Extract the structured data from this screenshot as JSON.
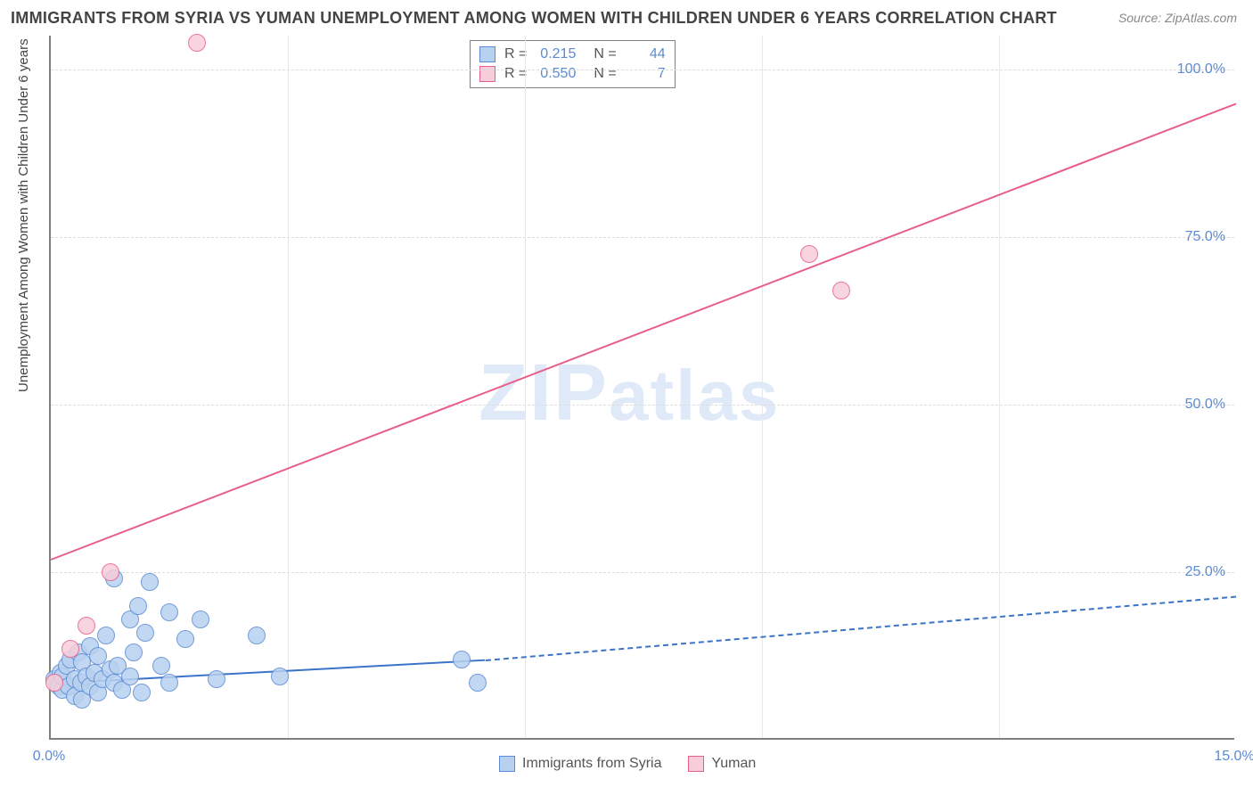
{
  "title": "IMMIGRANTS FROM SYRIA VS YUMAN UNEMPLOYMENT AMONG WOMEN WITH CHILDREN UNDER 6 YEARS CORRELATION CHART",
  "source": "Source: ZipAtlas.com",
  "ylabel": "Unemployment Among Women with Children Under 6 years",
  "watermark": "ZIPatlas",
  "chart": {
    "type": "scatter-with-trend",
    "xlim": [
      0,
      15
    ],
    "ylim": [
      0,
      105
    ],
    "xticks": [
      0.0,
      15.0
    ],
    "xtick_labels": [
      "0.0%",
      "15.0%"
    ],
    "yticks": [
      25.0,
      50.0,
      75.0,
      100.0
    ],
    "ytick_labels": [
      "25.0%",
      "50.0%",
      "75.0%",
      "100.0%"
    ],
    "grid_color": "#dddddd",
    "background": "#ffffff",
    "axis_color": "#808080",
    "label_color": "#5b8bd4",
    "series": [
      {
        "name": "Immigrants from Syria",
        "color_fill": "#b8d1ef",
        "color_stroke": "#5b8bd4",
        "trend_color": "#3b73c8",
        "R": "0.215",
        "N": "44",
        "trend": {
          "x1": 0,
          "y1": 8.5,
          "x2_solid": 5.5,
          "y2_solid": 12.0,
          "x2_dash": 15,
          "y2_dash": 21.5
        },
        "marker_r": 10,
        "points": [
          [
            0.05,
            9
          ],
          [
            0.1,
            8
          ],
          [
            0.12,
            10
          ],
          [
            0.15,
            7.5
          ],
          [
            0.15,
            9.5
          ],
          [
            0.2,
            11
          ],
          [
            0.22,
            8
          ],
          [
            0.25,
            12
          ],
          [
            0.3,
            9
          ],
          [
            0.3,
            6.5
          ],
          [
            0.35,
            13
          ],
          [
            0.38,
            8.5
          ],
          [
            0.4,
            11.5
          ],
          [
            0.4,
            6
          ],
          [
            0.45,
            9.5
          ],
          [
            0.5,
            14
          ],
          [
            0.5,
            8
          ],
          [
            0.55,
            10
          ],
          [
            0.6,
            7
          ],
          [
            0.6,
            12.5
          ],
          [
            0.65,
            9
          ],
          [
            0.7,
            15.5
          ],
          [
            0.75,
            10.5
          ],
          [
            0.8,
            8.5
          ],
          [
            0.8,
            24
          ],
          [
            0.85,
            11
          ],
          [
            0.9,
            7.5
          ],
          [
            1.0,
            18
          ],
          [
            1.0,
            9.5
          ],
          [
            1.05,
            13
          ],
          [
            1.1,
            20
          ],
          [
            1.15,
            7
          ],
          [
            1.2,
            16
          ],
          [
            1.25,
            23.5
          ],
          [
            1.4,
            11
          ],
          [
            1.5,
            19
          ],
          [
            1.5,
            8.5
          ],
          [
            1.7,
            15
          ],
          [
            1.9,
            18
          ],
          [
            2.1,
            9
          ],
          [
            2.6,
            15.5
          ],
          [
            2.9,
            9.5
          ],
          [
            5.2,
            12
          ],
          [
            5.4,
            8.5
          ]
        ]
      },
      {
        "name": "Yuman",
        "color_fill": "#f6cdd9",
        "color_stroke": "#e85f8b",
        "trend_color": "#e85f8b",
        "R": "0.550",
        "N": "7",
        "trend": {
          "x1": 0,
          "y1": 27,
          "x2_solid": 15,
          "y2_solid": 95,
          "x2_dash": 15,
          "y2_dash": 95
        },
        "marker_r": 10,
        "points": [
          [
            0.05,
            8.5
          ],
          [
            0.25,
            13.5
          ],
          [
            0.45,
            17
          ],
          [
            0.75,
            25
          ],
          [
            1.85,
            104
          ],
          [
            9.6,
            72.5
          ],
          [
            10.0,
            67
          ]
        ]
      }
    ]
  },
  "legend_bottom": [
    {
      "label": "Immigrants from Syria",
      "fill": "#b8d1ef",
      "stroke": "#5b8bd4"
    },
    {
      "label": "Yuman",
      "fill": "#f6cdd9",
      "stroke": "#e85f8b"
    }
  ]
}
